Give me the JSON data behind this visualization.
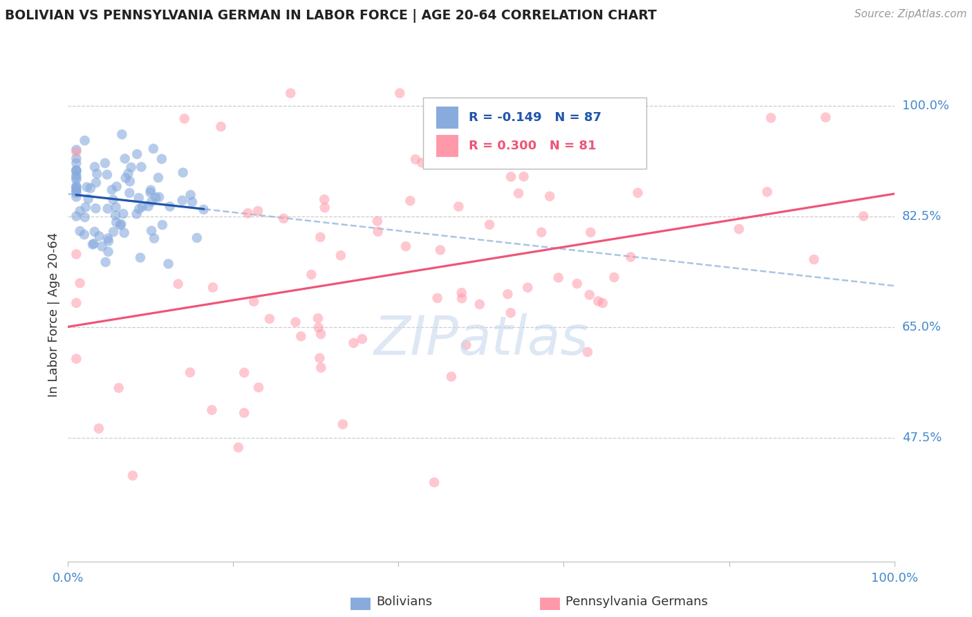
{
  "title": "BOLIVIAN VS PENNSYLVANIA GERMAN IN LABOR FORCE | AGE 20-64 CORRELATION CHART",
  "source": "Source: ZipAtlas.com",
  "ylabel": "In Labor Force | Age 20-64",
  "ytick_labels": [
    "100.0%",
    "82.5%",
    "65.0%",
    "47.5%"
  ],
  "ytick_values": [
    1.0,
    0.825,
    0.65,
    0.475
  ],
  "xlim": [
    0.0,
    1.0
  ],
  "ylim": [
    0.28,
    1.06
  ],
  "blue_color": "#88AADD",
  "pink_color": "#FF99AA",
  "blue_line_color": "#2255AA",
  "pink_line_color": "#EE5577",
  "dashed_color": "#99BBDD",
  "grid_color": "#CCCCCC",
  "tick_color": "#4488CC",
  "background_color": "#FFFFFF",
  "watermark_color": "#C8D8EE",
  "legend_r1": "-0.149",
  "legend_n1": "87",
  "legend_r2": "0.300",
  "legend_n2": "81"
}
